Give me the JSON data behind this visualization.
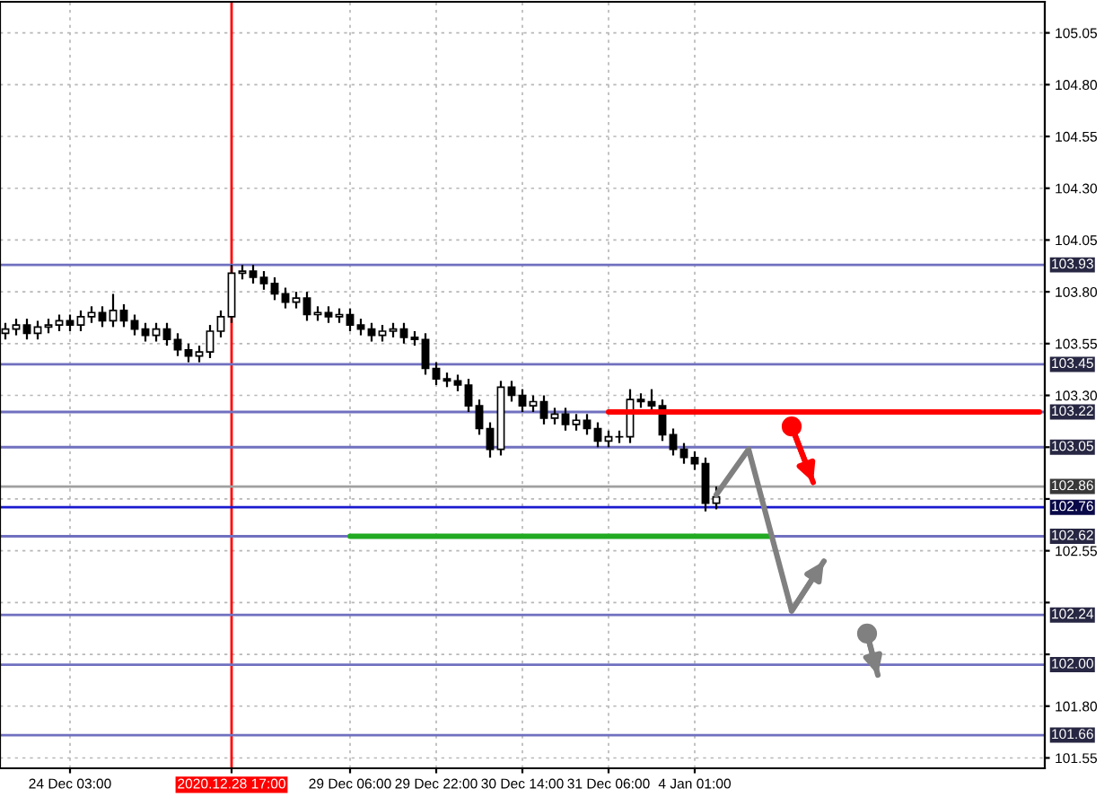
{
  "chart_data": {
    "type": "candlestick",
    "categories": [
      null,
      null,
      null,
      null,
      null,
      null,
      "24 Dec 03:00",
      null,
      null,
      null,
      null,
      null,
      null,
      null,
      null,
      null,
      null,
      null,
      null,
      null,
      null,
      "2020.12.28 17:00",
      null,
      null,
      null,
      null,
      null,
      null,
      null,
      null,
      null,
      null,
      "29 Dec 06:00",
      null,
      null,
      null,
      null,
      null,
      null,
      null,
      "29 Dec 22:00",
      null,
      null,
      null,
      null,
      null,
      null,
      null,
      "30 Dec 14:00",
      null,
      null,
      null,
      null,
      null,
      null,
      null,
      "31 Dec 06:00",
      null,
      null,
      null,
      null,
      null,
      null,
      null,
      "4 Jan 01:00",
      null,
      null,
      null,
      null,
      null,
      null,
      null,
      null,
      null,
      null,
      null,
      null,
      null,
      null,
      null,
      null,
      null,
      null,
      null,
      null,
      null,
      null,
      null,
      null,
      null,
      null,
      null,
      null,
      null,
      null,
      null,
      null
    ],
    "ohlc": [
      [
        103.6,
        103.65,
        103.57,
        103.62
      ],
      [
        103.62,
        103.67,
        103.59,
        103.64
      ],
      [
        103.64,
        103.67,
        103.57,
        103.6
      ],
      [
        103.6,
        103.66,
        103.57,
        103.63
      ],
      [
        103.63,
        103.67,
        103.6,
        103.64
      ],
      [
        103.64,
        103.69,
        103.61,
        103.66
      ],
      [
        103.66,
        103.69,
        103.61,
        103.64
      ],
      [
        103.64,
        103.71,
        103.61,
        103.68
      ],
      [
        103.68,
        103.73,
        103.65,
        103.7
      ],
      [
        103.7,
        103.73,
        103.63,
        103.66
      ],
      [
        103.66,
        103.79,
        103.63,
        103.71
      ],
      [
        103.71,
        103.74,
        103.63,
        103.66
      ],
      [
        103.66,
        103.69,
        103.59,
        103.62
      ],
      [
        103.62,
        103.65,
        103.56,
        103.59
      ],
      [
        103.59,
        103.65,
        103.56,
        103.62
      ],
      [
        103.62,
        103.65,
        103.54,
        103.57
      ],
      [
        103.57,
        103.6,
        103.49,
        103.52
      ],
      [
        103.52,
        103.55,
        103.46,
        103.49
      ],
      [
        103.49,
        103.54,
        103.46,
        103.51
      ],
      [
        103.51,
        103.64,
        103.48,
        103.61
      ],
      [
        103.61,
        103.71,
        103.58,
        103.68
      ],
      [
        103.68,
        103.93,
        103.65,
        103.89
      ],
      [
        103.89,
        103.93,
        103.86,
        103.9
      ],
      [
        103.9,
        103.93,
        103.84,
        103.87
      ],
      [
        103.87,
        103.9,
        103.81,
        103.84
      ],
      [
        103.84,
        103.87,
        103.76,
        103.79
      ],
      [
        103.79,
        103.82,
        103.72,
        103.75
      ],
      [
        103.75,
        103.8,
        103.72,
        103.77
      ],
      [
        103.77,
        103.8,
        103.66,
        103.69
      ],
      [
        103.69,
        103.73,
        103.66,
        103.7
      ],
      [
        103.7,
        103.73,
        103.65,
        103.68
      ],
      [
        103.68,
        103.72,
        103.65,
        103.69
      ],
      [
        103.69,
        103.72,
        103.61,
        103.64
      ],
      [
        103.64,
        103.67,
        103.59,
        103.62
      ],
      [
        103.62,
        103.65,
        103.56,
        103.59
      ],
      [
        103.59,
        103.64,
        103.56,
        103.61
      ],
      [
        103.61,
        103.65,
        103.58,
        103.62
      ],
      [
        103.62,
        103.65,
        103.55,
        103.58
      ],
      [
        103.58,
        103.61,
        103.54,
        103.57
      ],
      [
        103.57,
        103.6,
        103.4,
        103.43
      ],
      [
        103.43,
        103.46,
        103.35,
        103.38
      ],
      [
        103.38,
        103.41,
        103.34,
        103.37
      ],
      [
        103.37,
        103.4,
        103.32,
        103.35
      ],
      [
        103.35,
        103.38,
        103.22,
        103.25
      ],
      [
        103.25,
        103.28,
        103.11,
        103.14
      ],
      [
        103.14,
        103.17,
        103.0,
        103.04
      ],
      [
        103.04,
        103.37,
        103.01,
        103.34
      ],
      [
        103.34,
        103.37,
        103.27,
        103.3
      ],
      [
        103.3,
        103.33,
        103.22,
        103.25
      ],
      [
        103.25,
        103.3,
        103.22,
        103.27
      ],
      [
        103.27,
        103.3,
        103.16,
        103.19
      ],
      [
        103.19,
        103.24,
        103.16,
        103.21
      ],
      [
        103.21,
        103.24,
        103.13,
        103.16
      ],
      [
        103.16,
        103.21,
        103.13,
        103.18
      ],
      [
        103.18,
        103.21,
        103.11,
        103.14
      ],
      [
        103.14,
        103.17,
        103.05,
        103.08
      ],
      [
        103.08,
        103.13,
        103.05,
        103.1
      ],
      [
        103.1,
        103.13,
        103.07,
        103.1
      ],
      [
        103.1,
        103.33,
        103.07,
        103.28
      ],
      [
        103.28,
        103.31,
        103.24,
        103.27
      ],
      [
        103.27,
        103.33,
        103.22,
        103.25
      ],
      [
        103.25,
        103.28,
        103.08,
        103.11
      ],
      [
        103.11,
        103.14,
        103.01,
        103.04
      ],
      [
        103.04,
        103.07,
        102.97,
        103.0
      ],
      [
        103.0,
        103.03,
        102.94,
        102.97
      ],
      [
        102.97,
        103.0,
        102.74,
        102.78
      ],
      [
        102.78,
        102.86,
        102.75,
        102.81
      ],
      null,
      null,
      null,
      null,
      null,
      null,
      null,
      null,
      null,
      null,
      null,
      null,
      null,
      null,
      null,
      null,
      null,
      null,
      null,
      null,
      null,
      null,
      null,
      null,
      null,
      null,
      null,
      null,
      null,
      null
    ],
    "series": [
      {
        "type": "line",
        "color": "#ff0000",
        "values": [
          null,
          null,
          null,
          null,
          null,
          null,
          null,
          null,
          null,
          null,
          null,
          null,
          null,
          null,
          null,
          null,
          null,
          null,
          null,
          null,
          null,
          null,
          null,
          null,
          null,
          null,
          null,
          null,
          null,
          null,
          null,
          null,
          null,
          null,
          null,
          null,
          null,
          null,
          null,
          null,
          null,
          null,
          null,
          null,
          null,
          null,
          null,
          null,
          null,
          null,
          null,
          null,
          null,
          null,
          null,
          null,
          103.22,
          103.22,
          103.22,
          103.22,
          103.22,
          103.22,
          103.22,
          103.22,
          103.22,
          103.22,
          103.22,
          103.22,
          103.22,
          103.22,
          103.22,
          103.22,
          103.22,
          103.22,
          103.22,
          103.22,
          103.22,
          103.22,
          103.22,
          103.22,
          103.22,
          103.22,
          103.22,
          103.22,
          103.22,
          103.22,
          103.22,
          103.22,
          103.22,
          103.22,
          103.22,
          103.22,
          103.22,
          103.22,
          103.22,
          103.22,
          103.22
        ]
      },
      {
        "type": "line",
        "color": "#22aa22",
        "values": [
          null,
          null,
          null,
          null,
          null,
          null,
          null,
          null,
          null,
          null,
          null,
          null,
          null,
          null,
          null,
          null,
          null,
          null,
          null,
          null,
          null,
          null,
          null,
          null,
          null,
          null,
          null,
          null,
          null,
          null,
          null,
          null,
          102.62,
          102.62,
          102.62,
          102.62,
          102.62,
          102.62,
          102.62,
          102.62,
          102.62,
          102.62,
          102.62,
          102.62,
          102.62,
          102.62,
          102.62,
          102.62,
          102.62,
          102.62,
          102.62,
          102.62,
          102.62,
          102.62,
          102.62,
          102.62,
          102.62,
          102.62,
          102.62,
          102.62,
          102.62,
          102.62,
          102.62,
          102.62,
          102.62,
          102.62,
          102.62,
          102.62,
          102.62,
          102.62,
          102.62,
          102.62,
          null,
          null,
          null,
          null,
          null,
          null,
          null,
          null,
          null,
          null,
          null,
          null,
          null,
          null,
          null,
          null,
          null,
          null,
          null,
          null,
          null,
          null,
          null,
          null,
          null
        ]
      },
      {
        "type": "line",
        "color": "#808080",
        "values": [
          null,
          null,
          null,
          null,
          null,
          null,
          null,
          null,
          null,
          null,
          null,
          null,
          null,
          null,
          null,
          null,
          null,
          null,
          null,
          null,
          null,
          null,
          null,
          null,
          null,
          null,
          null,
          null,
          null,
          null,
          null,
          null,
          null,
          null,
          null,
          null,
          null,
          null,
          null,
          null,
          null,
          null,
          null,
          null,
          null,
          null,
          null,
          null,
          null,
          null,
          null,
          null,
          null,
          null,
          null,
          null,
          null,
          null,
          null,
          null,
          null,
          null,
          null,
          null,
          null,
          null,
          102.82,
          null,
          null,
          103.04,
          null,
          null,
          null,
          102.26,
          null,
          null,
          102.5,
          null,
          null,
          null,
          null,
          null,
          null,
          null,
          null,
          null,
          null,
          null,
          null,
          null,
          null,
          null,
          null,
          null,
          null,
          null,
          null
        ]
      },
      {
        "type": "line",
        "color": "#ff0000",
        "marker": "circle",
        "values": [
          null,
          null,
          null,
          null,
          null,
          null,
          null,
          null,
          null,
          null,
          null,
          null,
          null,
          null,
          null,
          null,
          null,
          null,
          null,
          null,
          null,
          null,
          null,
          null,
          null,
          null,
          null,
          null,
          null,
          null,
          null,
          null,
          null,
          null,
          null,
          null,
          null,
          null,
          null,
          null,
          null,
          null,
          null,
          null,
          null,
          null,
          null,
          null,
          null,
          null,
          null,
          null,
          null,
          null,
          null,
          null,
          null,
          null,
          null,
          null,
          null,
          null,
          null,
          null,
          null,
          null,
          null,
          null,
          null,
          null,
          null,
          null,
          null,
          103.15,
          null,
          102.88,
          null,
          null,
          null,
          null,
          null,
          null,
          null,
          null,
          null,
          null,
          null,
          null,
          null,
          null,
          null,
          null,
          null,
          null,
          null,
          null,
          null
        ]
      },
      {
        "type": "line",
        "color": "#808080",
        "marker": "circle",
        "values": [
          null,
          null,
          null,
          null,
          null,
          null,
          null,
          null,
          null,
          null,
          null,
          null,
          null,
          null,
          null,
          null,
          null,
          null,
          null,
          null,
          null,
          null,
          null,
          null,
          null,
          null,
          null,
          null,
          null,
          null,
          null,
          null,
          null,
          null,
          null,
          null,
          null,
          null,
          null,
          null,
          null,
          null,
          null,
          null,
          null,
          null,
          null,
          null,
          null,
          null,
          null,
          null,
          null,
          null,
          null,
          null,
          null,
          null,
          null,
          null,
          null,
          null,
          null,
          null,
          null,
          null,
          null,
          null,
          null,
          null,
          null,
          null,
          null,
          null,
          null,
          null,
          null,
          null,
          null,
          null,
          102.15,
          101.95,
          null,
          null,
          null,
          null,
          null,
          null,
          null,
          null,
          null,
          null,
          null,
          null,
          null,
          null,
          null
        ]
      }
    ],
    "ref_lines": [
      {
        "axis": "x",
        "value": "2020.12.28 17:00",
        "color": "#ff0000"
      },
      {
        "axis": "y",
        "value": 103.93,
        "label": "103.93",
        "color": "#7070c0"
      },
      {
        "axis": "y",
        "value": 103.45,
        "label": "103.45",
        "color": "#7070c0"
      },
      {
        "axis": "y",
        "value": 103.22,
        "label": "103.22",
        "color": "#7070c0"
      },
      {
        "axis": "y",
        "value": 103.05,
        "label": "103.05",
        "color": "#7070c0"
      },
      {
        "axis": "y",
        "value": 102.86,
        "label": "102.86",
        "color": "#a0a0a0"
      },
      {
        "axis": "y",
        "value": 102.76,
        "label": "102.76",
        "color": "#1a1ad0"
      },
      {
        "axis": "y",
        "value": 102.62,
        "label": "102.62",
        "color": "#7070c0"
      },
      {
        "axis": "y",
        "value": 102.24,
        "label": "102.24",
        "color": "#7070c0"
      },
      {
        "axis": "y",
        "value": 102.0,
        "label": "102.00",
        "color": "#7070c0"
      },
      {
        "axis": "y",
        "value": 101.66,
        "label": "101.66",
        "color": "#7070c0"
      }
    ],
    "ylim": [
      101.5,
      105.2
    ],
    "yticks": [
      {
        "value": 105.05,
        "label": "105.05"
      },
      {
        "value": 104.8,
        "label": "104.80"
      },
      {
        "value": 104.55,
        "label": "104.55"
      },
      {
        "value": 104.3,
        "label": "104.30"
      },
      {
        "value": 104.05,
        "label": "104.05"
      },
      {
        "value": 103.8,
        "label": "103.80"
      },
      {
        "value": 103.55,
        "label": "103.55"
      },
      {
        "value": 103.3,
        "label": "103.30"
      },
      {
        "value": 103.05,
        "label": null
      },
      {
        "value": 102.8,
        "label": null
      },
      {
        "value": 102.55,
        "label": "102.55"
      },
      {
        "value": 102.3,
        "label": null
      },
      {
        "value": 102.05,
        "label": null
      },
      {
        "value": 101.8,
        "label": "101.80"
      },
      {
        "value": 101.55,
        "label": "101.55"
      }
    ],
    "grid": true
  }
}
